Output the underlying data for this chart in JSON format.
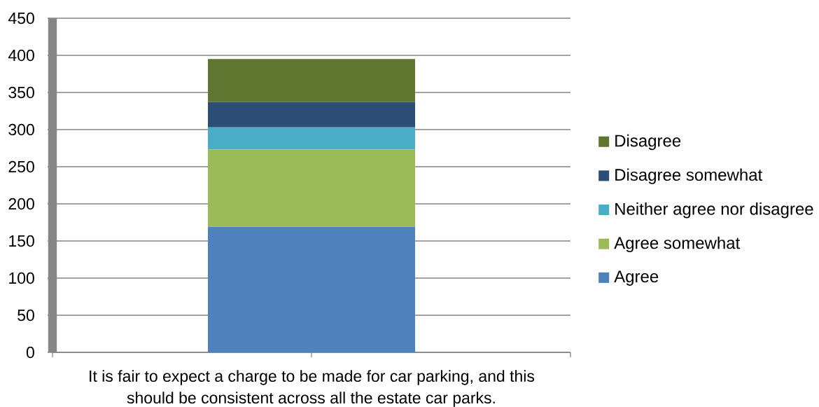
{
  "chart_data": {
    "type": "bar",
    "stacked": true,
    "categories": [
      "It is fair to expect a charge to be made for car parking, and this should be consistent across all the estate car parks."
    ],
    "series": [
      {
        "name": "Agree",
        "color": "#4f81bd",
        "values": [
          169
        ]
      },
      {
        "name": "Agree somewhat",
        "color": "#9bbb59",
        "values": [
          104
        ]
      },
      {
        "name": "Neither agree nor disagree",
        "color": "#4bacc6",
        "values": [
          30
        ]
      },
      {
        "name": "Disagree somewhat",
        "color": "#2c4d75",
        "values": [
          34
        ]
      },
      {
        "name": "Disagree",
        "color": "#5f7530",
        "values": [
          58
        ]
      }
    ],
    "ylim": [
      0,
      450
    ],
    "yticks": [
      0,
      50,
      100,
      150,
      200,
      250,
      300,
      350,
      400,
      450
    ],
    "grid": "y",
    "legend": "right"
  }
}
